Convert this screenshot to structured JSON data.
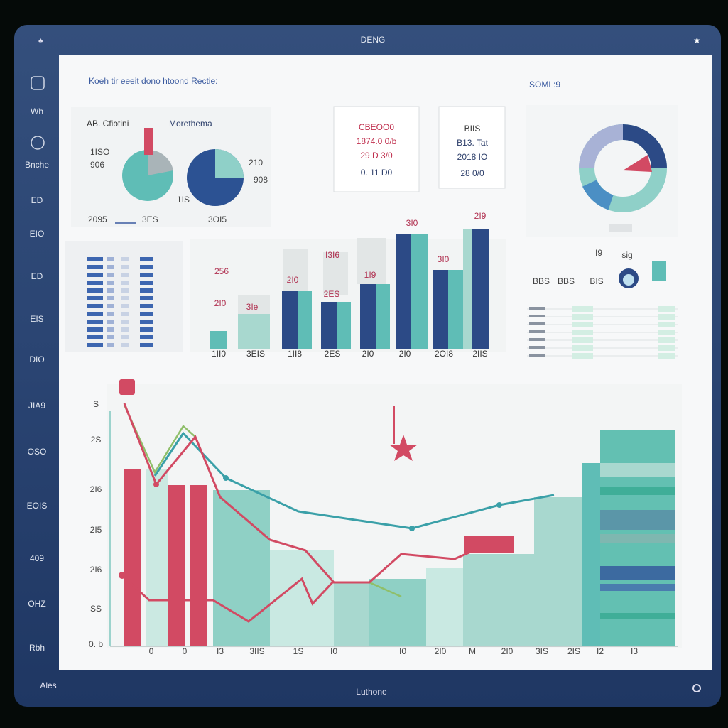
{
  "header": {
    "title": "DENG"
  },
  "sidebar": [
    "Wh",
    "Bnche",
    "ED",
    "EIO",
    "ED",
    "EIS",
    "DIO",
    "JIA9",
    "OSO",
    "EOIS",
    "409",
    "OHZ",
    "Rbh"
  ],
  "footer": {
    "left": "Ales",
    "center": "Luthone"
  },
  "main": {
    "title": "Koeh tir eeeit dono htoond Rectie:",
    "side_title": "SOML:9"
  },
  "pie_card": {
    "labels": [
      "AB. Cfiotini",
      "Morethema",
      "1ISO",
      "906",
      "210",
      "908",
      "1IS",
      "2095",
      "3ES",
      "3OI5"
    ]
  },
  "kpi_cards": [
    [
      "CBEOO0",
      "1874.0 0/b",
      "29 D 3/0",
      "0. 11 D0"
    ],
    [
      "BIIS",
      "B13. Tat",
      "2018 IO",
      "28 0/0"
    ]
  ],
  "bar_chart": {
    "labels": [
      "3I0",
      "2I9",
      "256",
      "I3I6",
      "2I0",
      "3I0",
      "1I9",
      "2I0",
      "3Ie",
      "2ES",
      "1II0",
      "3EIS",
      "1II8",
      "2ES",
      "2I0",
      "2I0",
      "2OI8",
      "2IIS"
    ]
  },
  "widget": {
    "labels": [
      "I9",
      "sig",
      "BBS",
      "BBS",
      "BIS"
    ]
  },
  "line_chart": {
    "y_labels": [
      "S",
      "2S",
      "2I6",
      "2I5",
      "2I6",
      "SS",
      "0. b"
    ],
    "x_labels": [
      "0",
      "0",
      "I3",
      "3IIS",
      "1S",
      "I0",
      "I0",
      "2I0",
      "M",
      "2I0",
      "3IS",
      "2IS",
      "I2",
      "I3"
    ]
  }
}
